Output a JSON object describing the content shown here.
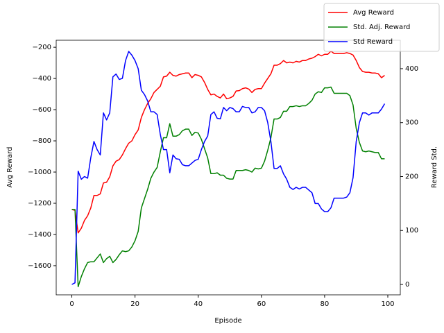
{
  "chart_data": {
    "type": "line",
    "xlabel": "Episode",
    "ylabel": "Avg Reward",
    "y2label": "Reward Std.",
    "x": [
      0,
      1,
      2,
      3,
      4,
      5,
      6,
      7,
      8,
      9,
      10,
      11,
      12,
      13,
      14,
      15,
      16,
      17,
      18,
      19,
      20,
      21,
      22,
      23,
      24,
      25,
      26,
      27,
      28,
      29,
      30,
      31,
      32,
      33,
      34,
      35,
      36,
      37,
      38,
      39,
      40,
      41,
      42,
      43,
      44,
      45,
      46,
      47,
      48,
      49,
      50,
      51,
      52,
      53,
      54,
      55,
      56,
      57,
      58,
      59,
      60,
      61,
      62,
      63,
      64,
      65,
      66,
      67,
      68,
      69,
      70,
      71,
      72,
      73,
      74,
      75,
      76,
      77,
      78,
      79,
      80,
      81,
      82,
      83,
      84,
      85,
      86,
      87,
      88,
      89,
      90,
      91,
      92,
      93,
      94,
      95,
      96,
      97,
      98,
      99
    ],
    "series": [
      {
        "name": "Avg Reward",
        "color": "#ff0000",
        "values": [
          -1240,
          -1245,
          -1390,
          -1360,
          -1310,
          -1280,
          -1230,
          -1150,
          -1150,
          -1140,
          -1070,
          -1065,
          -1030,
          -960,
          -930,
          -920,
          -890,
          -850,
          -815,
          -800,
          -760,
          -730,
          -650,
          -600,
          -560,
          -530,
          -490,
          -470,
          -450,
          -390,
          -385,
          -360,
          -380,
          -385,
          -375,
          -370,
          -365,
          -365,
          -395,
          -375,
          -380,
          -390,
          -425,
          -470,
          -505,
          -500,
          -515,
          -525,
          -500,
          -530,
          -525,
          -515,
          -480,
          -478,
          -465,
          -460,
          -468,
          -490,
          -470,
          -465,
          -465,
          -430,
          -400,
          -370,
          -315,
          -315,
          -305,
          -285,
          -300,
          -295,
          -300,
          -290,
          -295,
          -285,
          -285,
          -275,
          -270,
          -260,
          -245,
          -255,
          -245,
          -245,
          -225,
          -240,
          -240,
          -240,
          -240,
          -235,
          -240,
          -250,
          -285,
          -330,
          -355,
          -360,
          -360,
          -365,
          -365,
          -370,
          -395,
          -380
        ]
      },
      {
        "name": "Std. Adj. Reward",
        "color": "#008000",
        "values": [
          -1240,
          -1240,
          -1735,
          -1670,
          -1620,
          -1580,
          -1575,
          -1575,
          -1550,
          -1525,
          -1580,
          -1555,
          -1540,
          -1580,
          -1560,
          -1530,
          -1505,
          -1510,
          -1505,
          -1480,
          -1440,
          -1380,
          -1230,
          -1170,
          -1110,
          -1040,
          -1000,
          -970,
          -870,
          -780,
          -780,
          -690,
          -770,
          -770,
          -760,
          -735,
          -725,
          -725,
          -765,
          -745,
          -750,
          -790,
          -850,
          -910,
          -1010,
          -1010,
          -1005,
          -1020,
          -1020,
          -1040,
          -1045,
          -1045,
          -990,
          -990,
          -990,
          -985,
          -990,
          -1000,
          -975,
          -980,
          -975,
          -930,
          -860,
          -780,
          -660,
          -660,
          -650,
          -610,
          -610,
          -580,
          -580,
          -575,
          -580,
          -575,
          -575,
          -560,
          -540,
          -500,
          -485,
          -490,
          -460,
          -460,
          -455,
          -495,
          -495,
          -495,
          -495,
          -495,
          -510,
          -570,
          -720,
          -810,
          -865,
          -870,
          -865,
          -870,
          -875,
          -875,
          -915,
          -915
        ]
      },
      {
        "name": "Std Reward",
        "color": "#0000ff",
        "axis": "y2",
        "values": [
          0,
          3,
          210,
          195,
          200,
          197,
          235,
          265,
          250,
          240,
          318,
          305,
          318,
          385,
          390,
          380,
          382,
          415,
          432,
          425,
          415,
          400,
          360,
          352,
          340,
          320,
          320,
          315,
          278,
          250,
          250,
          207,
          240,
          233,
          232,
          222,
          220,
          220,
          225,
          230,
          232,
          250,
          265,
          275,
          315,
          320,
          308,
          307,
          328,
          322,
          328,
          326,
          320,
          320,
          330,
          328,
          328,
          318,
          320,
          328,
          328,
          322,
          300,
          265,
          215,
          215,
          220,
          205,
          195,
          180,
          176,
          180,
          177,
          180,
          180,
          175,
          170,
          150,
          150,
          140,
          135,
          135,
          142,
          160,
          160,
          160,
          160,
          162,
          170,
          198,
          265,
          300,
          318,
          318,
          314,
          318,
          318,
          318,
          325,
          335
        ]
      }
    ],
    "xlim": [
      -4.95,
      103.95
    ],
    "xticks": [
      0,
      20,
      40,
      60,
      80,
      100
    ],
    "ylim": [
      -1787,
      -155
    ],
    "yticks": [
      {
        "value": -1600,
        "label": "−1600"
      },
      {
        "value": -1400,
        "label": "−1400"
      },
      {
        "value": -1200,
        "label": "−1200"
      },
      {
        "value": -1000,
        "label": "−1000"
      },
      {
        "value": -800,
        "label": "−800"
      },
      {
        "value": -600,
        "label": "−600"
      },
      {
        "value": -400,
        "label": "−400"
      },
      {
        "value": -200,
        "label": "−200"
      }
    ],
    "y2lim": [
      -19.3,
      452.7
    ],
    "y2ticks": [
      0,
      100,
      200,
      300,
      400
    ],
    "legend": "upper right"
  }
}
